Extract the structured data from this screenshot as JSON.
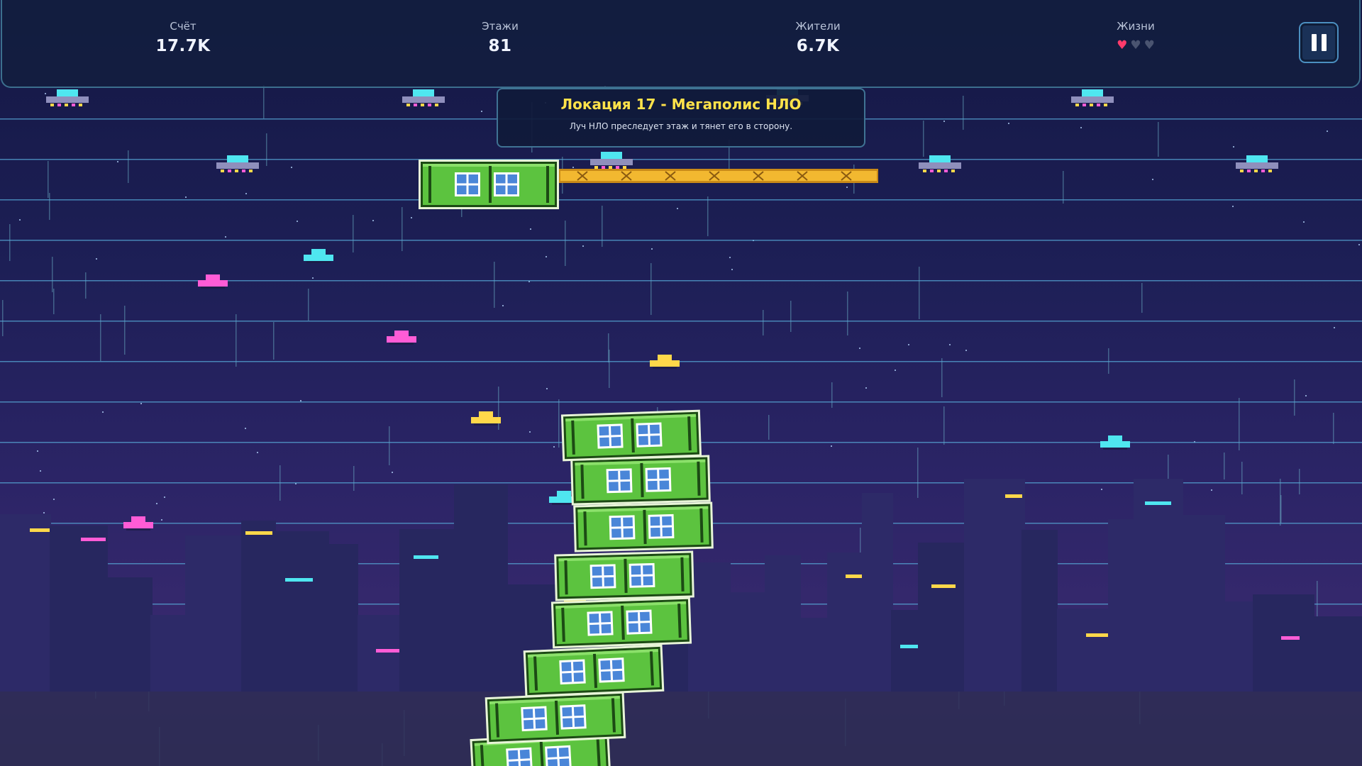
{
  "hud": {
    "score": {
      "label": "Счёт",
      "value": "17.7K"
    },
    "floors": {
      "label": "Этажи",
      "value": "81"
    },
    "residents": {
      "label": "Жители",
      "value": "6.7K"
    },
    "lives": {
      "label": "Жизни",
      "total": 3,
      "remaining": 1
    }
  },
  "banner": {
    "title": "Локация 17 - Мегаполис НЛО",
    "description": "Луч НЛО преследует этаж и тянет его в сторону."
  },
  "colors": {
    "life_full": "#ff3b6b",
    "life_empty": "#4a5470",
    "block_green": "#5cc33f",
    "block_dark": "#1c4a14",
    "beam": "#f2b830",
    "neon_cyan": "#4fe6f0",
    "neon_pink": "#ff5cd6",
    "neon_yellow": "#ffd84a",
    "banner_title": "#ffe24a"
  },
  "icons": {
    "pause": "pause-icon",
    "life": "heart-icon",
    "ufo": "ufo-icon"
  }
}
